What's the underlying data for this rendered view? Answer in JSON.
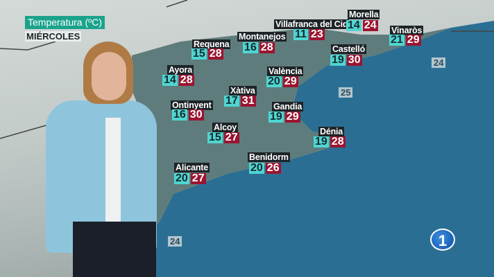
{
  "header": {
    "title": "Temperatura (ºC)",
    "day": "MIÉRCOLES"
  },
  "cities": [
    {
      "name": "Requena",
      "min": "15",
      "max": "28"
    },
    {
      "name": "Montanejos",
      "min": "16",
      "max": "28"
    },
    {
      "name": "Villafranca del Cid",
      "min": "11",
      "max": "23"
    },
    {
      "name": "Morella",
      "min": "14",
      "max": "24"
    },
    {
      "name": "Vinaròs",
      "min": "21",
      "max": "29"
    },
    {
      "name": "Castelló",
      "min": "19",
      "max": "30"
    },
    {
      "name": "València",
      "min": "20",
      "max": "29"
    },
    {
      "name": "Ayora",
      "min": "14",
      "max": "28"
    },
    {
      "name": "Xàtiva",
      "min": "17",
      "max": "31"
    },
    {
      "name": "Ontinyent",
      "min": "16",
      "max": "30"
    },
    {
      "name": "Gandia",
      "min": "19",
      "max": "29"
    },
    {
      "name": "Alcoy",
      "min": "15",
      "max": "27"
    },
    {
      "name": "Dénia",
      "min": "19",
      "max": "28"
    },
    {
      "name": "Benidorm",
      "min": "20",
      "max": "26"
    },
    {
      "name": "Alicante",
      "min": "20",
      "max": "27"
    }
  ],
  "sea_temps": [
    "24",
    "25",
    "24"
  ],
  "colors": {
    "min": "#4fd6d2",
    "max": "#9b1430",
    "title_bg": "#1aa38b",
    "sea": "#2a6f93"
  },
  "logo": {
    "text": "1"
  }
}
